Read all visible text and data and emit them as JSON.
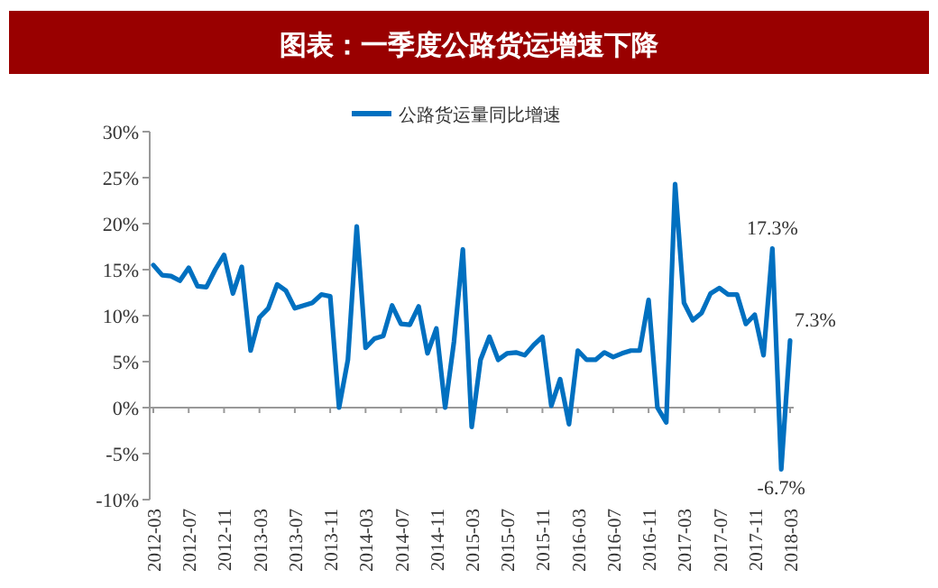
{
  "chart_data": {
    "type": "line",
    "title": "图表：一季度公路货运增速下降",
    "categories": [
      "2012-03",
      null,
      null,
      null,
      "2012-07",
      null,
      null,
      null,
      "2012-11",
      null,
      null,
      null,
      "2013-03",
      null,
      null,
      null,
      "2013-07",
      null,
      null,
      null,
      "2013-11",
      null,
      null,
      null,
      "2014-03",
      null,
      null,
      null,
      "2014-07",
      null,
      null,
      null,
      "2014-11",
      null,
      null,
      null,
      "2015-03",
      null,
      null,
      null,
      "2015-07",
      null,
      null,
      null,
      "2015-11",
      null,
      null,
      null,
      "2016-03",
      null,
      null,
      null,
      "2016-07",
      null,
      null,
      null,
      "2016-11",
      null,
      null,
      null,
      "2017-03",
      null,
      null,
      null,
      "2017-07",
      null,
      null,
      null,
      "2017-11",
      null,
      null,
      null,
      "2018-03"
    ],
    "series": [
      {
        "name": "公路货运量同比增速",
        "color": "#0070c0",
        "values": [
          15.5,
          14.4,
          14.3,
          13.8,
          15.2,
          13.2,
          13.1,
          15.0,
          16.6,
          12.4,
          15.3,
          6.2,
          9.8,
          10.8,
          13.4,
          12.7,
          10.8,
          11.1,
          11.4,
          12.3,
          12.1,
          0.0,
          5.2,
          19.7,
          6.5,
          7.5,
          7.8,
          11.1,
          9.1,
          9.0,
          11.0,
          5.9,
          8.6,
          0.0,
          7.2,
          17.2,
          -2.1,
          5.2,
          7.7,
          5.2,
          5.9,
          6.0,
          5.7,
          6.8,
          7.7,
          0.2,
          3.1,
          -1.8,
          6.2,
          5.2,
          5.2,
          6.0,
          5.5,
          5.9,
          6.2,
          6.2,
          11.7,
          0.0,
          -1.6,
          24.3,
          11.4,
          9.5,
          10.3,
          12.4,
          13.0,
          12.3,
          12.3,
          9.1,
          10.1,
          5.7,
          17.3,
          -6.7,
          7.3
        ],
        "value_labels": [
          null,
          null,
          null,
          null,
          null,
          null,
          null,
          null,
          null,
          null,
          null,
          null,
          null,
          null,
          null,
          null,
          null,
          null,
          null,
          null,
          null,
          null,
          null,
          null,
          null,
          null,
          null,
          null,
          null,
          null,
          null,
          null,
          null,
          null,
          null,
          null,
          null,
          null,
          null,
          null,
          null,
          null,
          null,
          null,
          null,
          null,
          null,
          null,
          null,
          null,
          null,
          null,
          null,
          null,
          null,
          null,
          null,
          null,
          null,
          null,
          null,
          null,
          null,
          null,
          null,
          null,
          null,
          null,
          null,
          null,
          "17.3%",
          "-6.7%",
          "7.3%"
        ]
      }
    ],
    "ylim": [
      -10,
      30
    ],
    "yticks": [
      {
        "value": -10,
        "label": "-10%"
      },
      {
        "value": -5,
        "label": "-5%"
      },
      {
        "value": 0,
        "label": "0%"
      },
      {
        "value": 5,
        "label": "5%"
      },
      {
        "value": 10,
        "label": "10%"
      },
      {
        "value": 15,
        "label": "15%"
      },
      {
        "value": 20,
        "label": "20%"
      },
      {
        "value": 25,
        "label": "25%"
      },
      {
        "value": 30,
        "label": "30%"
      }
    ],
    "legend": "top"
  }
}
